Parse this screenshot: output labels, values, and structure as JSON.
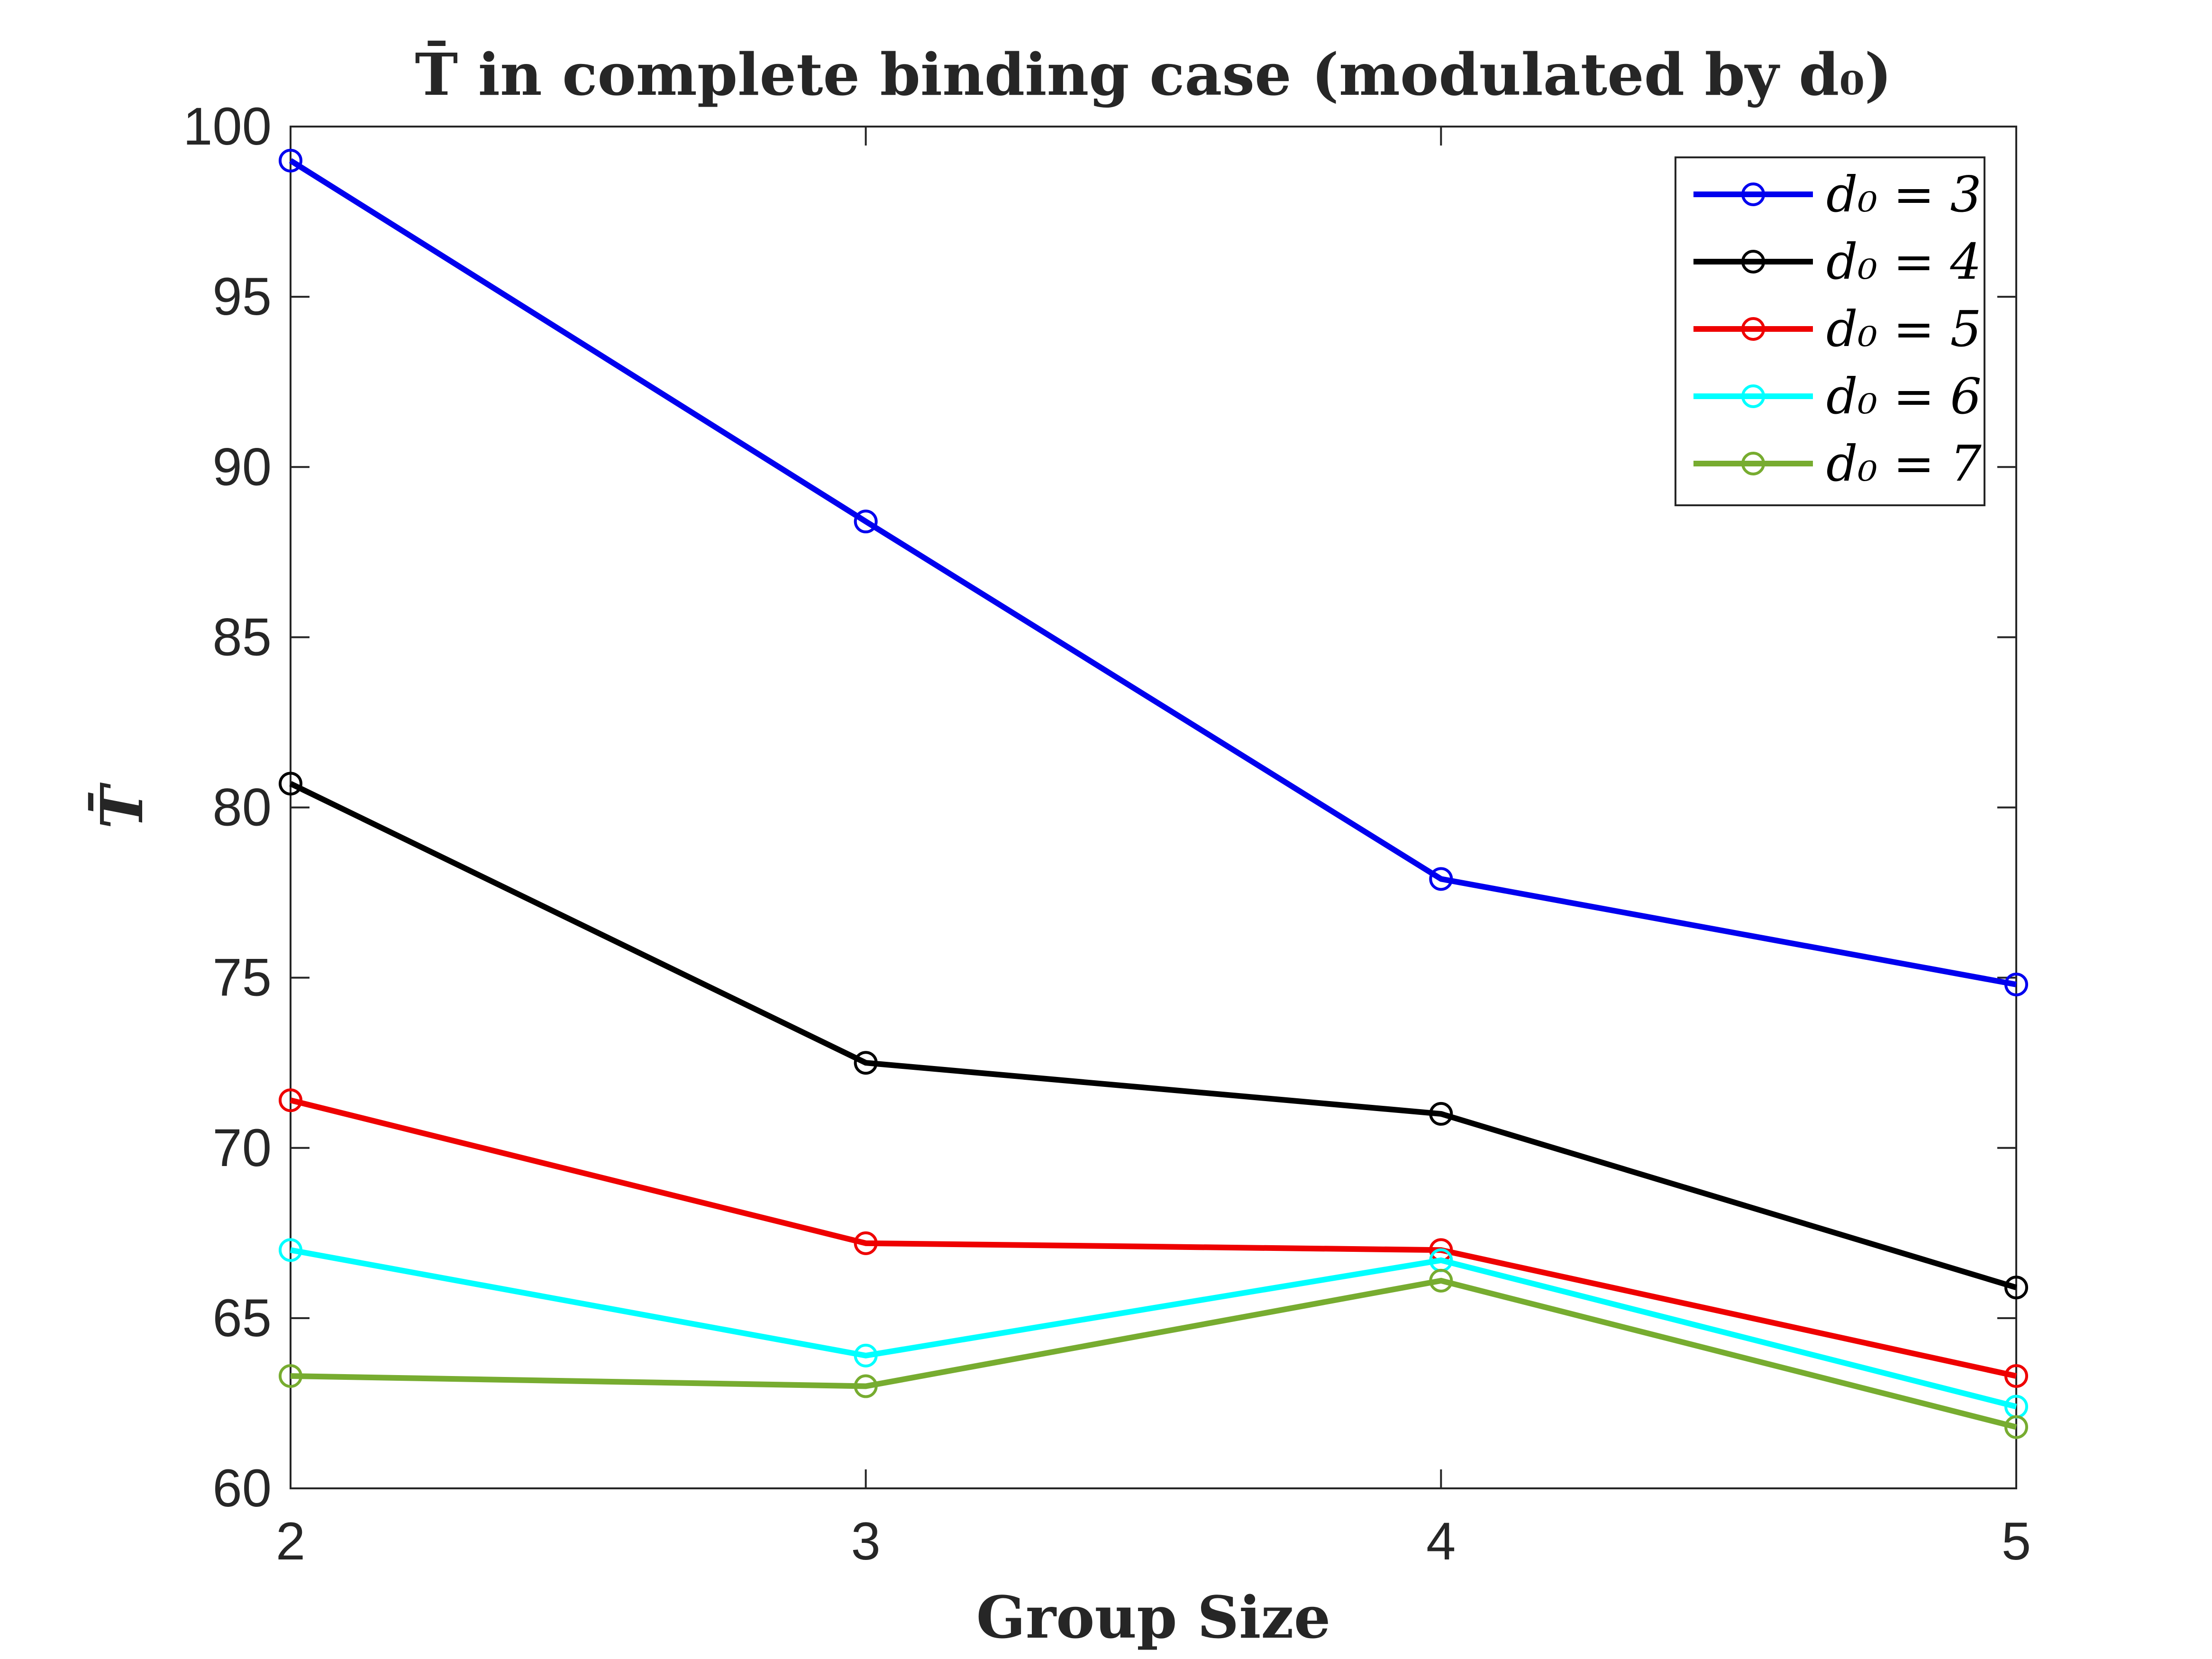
{
  "chart_data": {
    "type": "line",
    "title": "T̄ in complete binding case (modulated by d₀)",
    "xlabel": "Group Size",
    "ylabel": "T̄",
    "x": [
      2,
      3,
      4,
      5
    ],
    "xlim": [
      2,
      5
    ],
    "ylim": [
      60,
      100
    ],
    "xticks": [
      "2",
      "3",
      "4",
      "5"
    ],
    "yticks": [
      "60",
      "65",
      "70",
      "75",
      "80",
      "85",
      "90",
      "95",
      "100"
    ],
    "grid": false,
    "legend_position": "top-right",
    "marker": "circle",
    "series": [
      {
        "name": "d₀ = 3",
        "color": "#0000ee",
        "values": [
          99.0,
          88.4,
          77.9,
          74.8
        ]
      },
      {
        "name": "d₀ = 4",
        "color": "#000000",
        "values": [
          80.7,
          72.5,
          71.0,
          65.9
        ]
      },
      {
        "name": "d₀ = 5",
        "color": "#ee0000",
        "values": [
          71.4,
          67.2,
          67.0,
          63.3
        ]
      },
      {
        "name": "d₀ = 6",
        "color": "#00ffff",
        "values": [
          67.0,
          63.9,
          66.7,
          62.4
        ]
      },
      {
        "name": "d₀ = 7",
        "color": "#77ac30",
        "values": [
          63.3,
          63.0,
          66.1,
          61.8
        ]
      }
    ]
  }
}
